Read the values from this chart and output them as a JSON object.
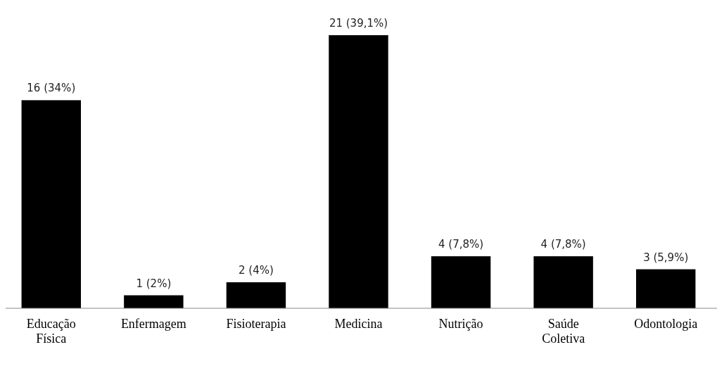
{
  "chart_data": {
    "type": "bar",
    "categories": [
      "Educação Física",
      "Enfermagem",
      "Fisioterapia",
      "Medicina",
      "Nutrição",
      "Saúde Coletiva",
      "Odontologia"
    ],
    "values": [
      16,
      1,
      2,
      21,
      4,
      4,
      3
    ],
    "value_labels": [
      "16 (34%)",
      "1 (2%)",
      "2 (4%)",
      "21 (39,1%)",
      "4 (7,8%)",
      "4 (7,8%)",
      "3 (5,9%)"
    ],
    "color": "#000000"
  }
}
